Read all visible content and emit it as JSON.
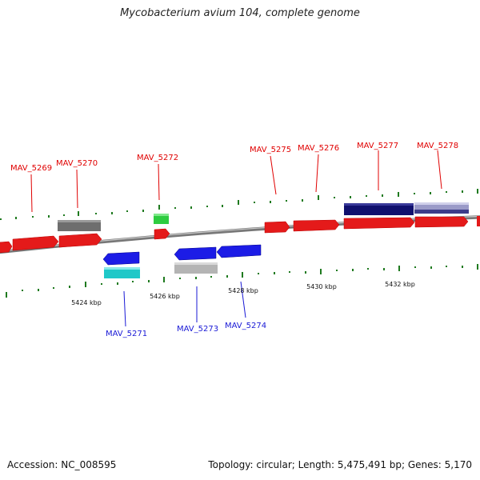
{
  "title": "Mycobacterium avium 104, complete genome",
  "footer": {
    "accession": "Accession: NC_008595",
    "summary": "Topology: circular; Length: 5,475,491 bp; Genes: 5,170"
  },
  "colors": {
    "forward_gene": "#e41a1a",
    "reverse_gene": "#1c1ce6",
    "label_forward": "#e00000",
    "label_reverse": "#1a1ad6",
    "backbone": "#888888",
    "tick": "#1f7a1f",
    "gray_feature": "#6e6e6e",
    "light_gray_feature": "#b4b4b4",
    "green_feature": "#2ecc40",
    "cyan_feature": "#1fc8c8",
    "navy_feature": "#10106e",
    "lavender_feature": "#9a9ac8"
  },
  "scale_labels": [
    "5424 kbp",
    "5426 kbp",
    "5428 kbp",
    "5430 kbp",
    "5432 kbp"
  ],
  "gene_labels": {
    "forward": [
      "MAV_5269",
      "MAV_5270",
      "MAV_5272",
      "MAV_5275",
      "MAV_5276",
      "MAV_5277",
      "MAV_5278"
    ],
    "reverse": [
      "MAV_5271",
      "MAV_5273",
      "MAV_5274"
    ]
  }
}
